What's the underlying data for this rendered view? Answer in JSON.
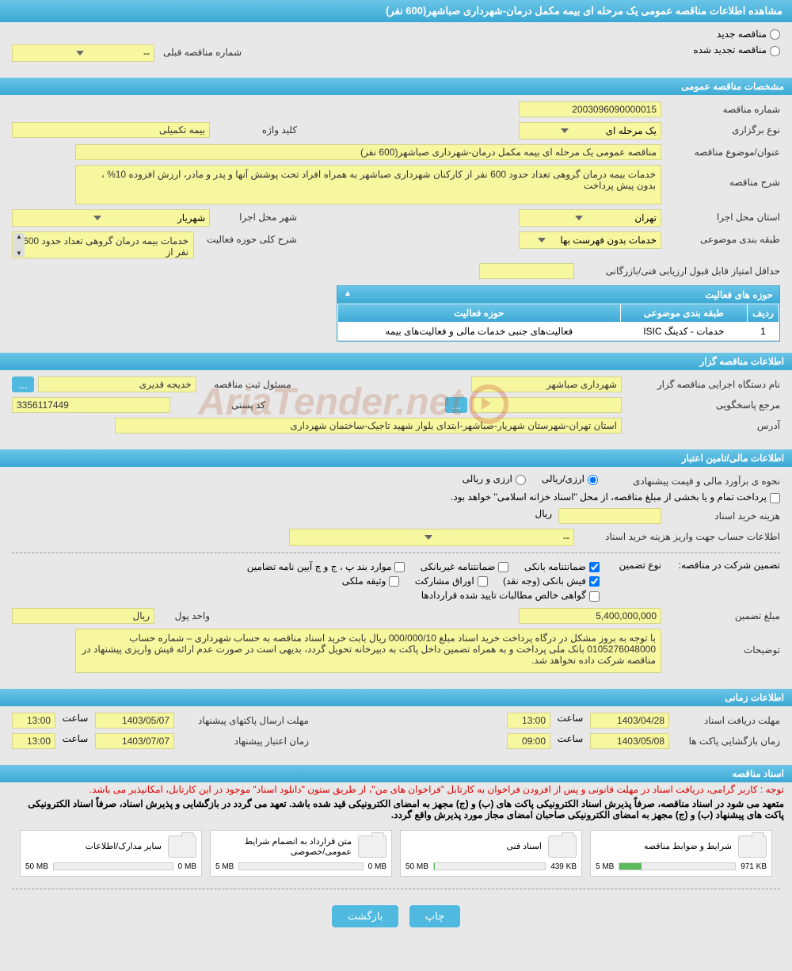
{
  "page_title": "مشاهده اطلاعات مناقصه عمومی یک مرحله ای بیمه مکمل درمان-شهرداری صباشهر(600 نفر)",
  "radios": {
    "new_tender": "مناقصه جدید",
    "renewed_tender": "مناقصه تجدید شده",
    "prev_tender_label": "شماره مناقصه قبلی",
    "prev_tender_value": "--"
  },
  "sections": {
    "general_spec": "مشخصات مناقصه عمومی",
    "activity_areas": "حوزه های فعالیت",
    "tender_org_info": "اطلاعات مناقصه گزار",
    "financial_info": "اطلاعات مالی/تامین اعتبار",
    "time_info": "اطلاعات زمانی",
    "tender_docs": "اسناد مناقصه"
  },
  "general": {
    "tender_no_label": "شماره مناقصه",
    "tender_no": "2003096090000015",
    "holding_type_label": "نوع برگزاری",
    "holding_type": "یک مرحله ای",
    "keyword_label": "کلید واژه",
    "keyword": "بیمه تکمیلی",
    "subject_label": "عنوان/موضوع مناقصه",
    "subject": "مناقصه عمومی یک مرحله ای بیمه مکمل درمان-شهرداری صباشهر(600 نفر)",
    "desc_label": "شرح مناقصه",
    "desc": "خدمات بیمه درمان گروهی تعداد حدود 600 نفر از کارکنان شهرداری صباشهر به همراه افراد تحت پوشش آنها و پدر و مادر،  ارزش افزوده 10% ، بدون پیش پرداخت",
    "province_label": "استان محل اجرا",
    "province": "تهران",
    "city_label": "شهر محل اجرا",
    "city": "شهریار",
    "category_label": "طبقه بندی موضوعی",
    "category": "خدمات بدون فهرست بها",
    "scope_label": "شرح کلی حوزه فعالیت",
    "scope": "خدمات بیمه درمان گروهی تعداد حدود 600 نفر از",
    "min_score_label": "حداقل امتیاز قابل قبول ارزیابی فنی/بازرگانی"
  },
  "activities": {
    "cols": {
      "row": "ردیف",
      "cat": "طبقه بندی موضوعی",
      "area": "حوزه فعالیت"
    },
    "rows": [
      {
        "no": "1",
        "cat": "خدمات - کدینگ ISIC",
        "area": "فعالیت‌های جنبی خدمات مالی و فعالیت‌های بیمه"
      }
    ]
  },
  "org": {
    "org_name_label": "نام دستگاه اجرایی مناقصه گزار",
    "org_name": "شهرداری صباشهر",
    "reg_officer_label": "مسئول ثبت مناقصه",
    "reg_officer": "خدیجه قدیری",
    "responder_label": "مرجع پاسخگویی",
    "postal_label": "کد پستی",
    "postal": "3356117449",
    "address_label": "آدرس",
    "address": "استان تهران-شهرستان شهریار-صباشهر-ابتدای بلوار شهید تاجیک-ساختمان شهرداری"
  },
  "financial": {
    "estimate_label": "نحوه ی برآورد مالی و قیمت پیشنهادی",
    "currency_opt1": "ارزی/ریالی",
    "currency_opt2": "ارزی و ریالی",
    "treasury_note": "پرداخت تمام و یا بخشی از مبلغ مناقصه، از محل \"اسناد خزانه اسلامی\" خواهد بود.",
    "doc_fee_label": "هزینه خرید اسناد",
    "rial": "ریال",
    "account_info_label": "اطلاعات حساب جهت واریز هزینه خرید اسناد",
    "account_info_value": "--",
    "guarantee_label": "تضمین شرکت در مناقصه:",
    "guarantee_type_label": "نوع تضمین",
    "chk_bank_guarantee": "ضمانتنامه بانکی",
    "chk_nonbank_guarantee": "ضمانتنامه غیربانکی",
    "chk_clauses": "موارد بند پ ، ج و چ آیین نامه تضامین",
    "chk_bank_receipt": "فیش بانکی (وجه نقد)",
    "chk_participation": "اوراق مشارکت",
    "chk_property": "وثیقه ملکی",
    "chk_net_claims": "گواهی خالص مطالبات تایید شده قراردادها",
    "guarantee_amount_label": "مبلغ تضمین",
    "guarantee_amount": "5,400,000,000",
    "unit_label": "واحد پول",
    "unit_value": "ریال",
    "notes_label": "توضیحات",
    "notes": "با توجه به بروز مشکل در درگاه پرداخت خرید اسناد مبلغ 000/000/10 ریال بابت خرید اسناد مناقصه به حساب شهرداری – شماره حساب 0105276048000  بانک ملی پرداخت و به همراه تضمین داخل پاکت  به دبیرخانه تحویل گردد، بدیهی است در صورت عدم ارائه  فیش واریزی پیشنهاد در مناقصه شرکت داده نخواهد شد."
  },
  "time": {
    "doc_deadline_label": "مهلت دریافت اسناد",
    "doc_deadline_date": "1403/04/28",
    "time_label": "ساعت",
    "doc_deadline_time": "13:00",
    "proposal_deadline_label": "مهلت ارسال پاکتهای پیشنهاد",
    "proposal_deadline_date": "1403/05/07",
    "proposal_deadline_time": "13:00",
    "opening_label": "زمان بازگشایی پاکت ها",
    "opening_date": "1403/05/08",
    "opening_time": "09:00",
    "credit_label": "زمان اعتبار پیشنهاد",
    "credit_date": "1403/07/07",
    "credit_time": "13:00"
  },
  "docs": {
    "notice1": "توجه : کاربر گرامی، دریافت اسناد در مهلت قانونی و پس از افزودن فراخوان به کارتابل \"فراخوان های من\"، از طریق ستون \"دانلود اسناد\" موجود در این کارتابل، امکانپذیر می باشد.",
    "notice2": "متعهد می شود در اسناد مناقصه، صرفاً پذیرش اسناد الکترونیکی پاکت های (ب) و (ج) مجهز به امضای الکترونیکی قید شده باشد. تعهد می گردد در بازگشایی و پذیرش اسناد، صرفاً اسناد الکترونیکی پاکت های پیشنهاد (ب) و (ج) مجهز به امضای الکترونیکی صاحبان امضای مجاز مورد پذیرش واقع گردد.",
    "items": [
      {
        "title": "شرایط و ضوابط مناقصه",
        "used": "971 KB",
        "total": "5 MB",
        "pct": 19
      },
      {
        "title": "اسناد فنی",
        "used": "439 KB",
        "total": "50 MB",
        "pct": 1
      },
      {
        "title": "متن قرارداد به انضمام شرایط عمومی/خصوصی",
        "used": "0 MB",
        "total": "5 MB",
        "pct": 0
      },
      {
        "title": "سایر مدارک/اطلاعات",
        "used": "0 MB",
        "total": "50 MB",
        "pct": 0
      }
    ]
  },
  "buttons": {
    "print": "چاپ",
    "back": "بازگشت",
    "dots": "..."
  },
  "watermark": "AriaTender.net",
  "colors": {
    "header_bg": "#3ba9d4",
    "field_bg": "#f7f7a0",
    "page_bg": "#e8e8e8",
    "btn_bg": "#4fb9e0"
  }
}
